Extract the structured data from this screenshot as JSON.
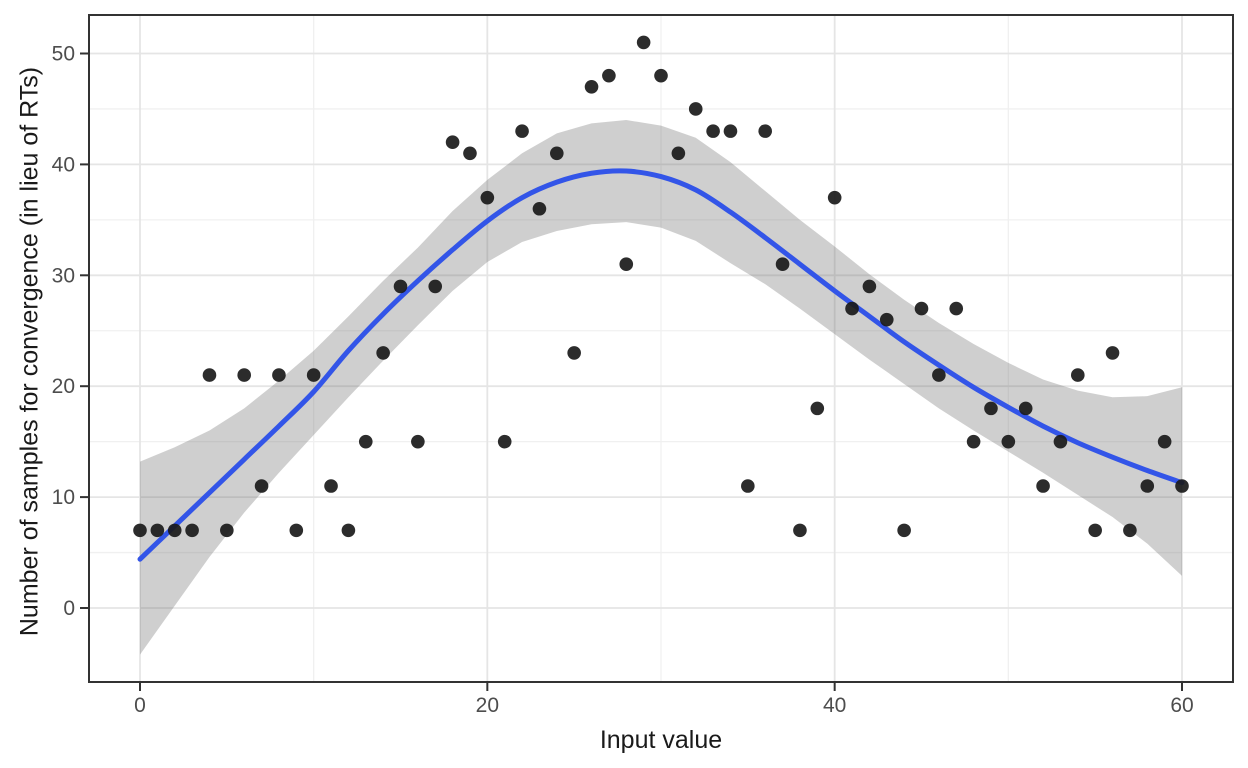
{
  "chart_data": {
    "type": "scatter",
    "title": "",
    "xlabel": "Input value",
    "ylabel": "Number of samples for convergence (in lieu of RTs)",
    "x_axis": {
      "min": -2.9,
      "max": 62.9,
      "major_ticks": [
        0,
        20,
        40,
        60
      ],
      "minor_gridlines": [
        10,
        30,
        50
      ],
      "tick_labels": [
        "0",
        "20",
        "40",
        "60"
      ]
    },
    "y_axis": {
      "min": -6.7,
      "max": 53.5,
      "major_ticks": [
        0,
        10,
        20,
        30,
        40,
        50
      ],
      "minor_gridlines": [
        5,
        15,
        25,
        35,
        45
      ],
      "tick_labels": [
        "0",
        "10",
        "20",
        "30",
        "40",
        "50"
      ]
    },
    "grid": "on",
    "legend": "none",
    "points": {
      "x": [
        0,
        1,
        2,
        3,
        4,
        5,
        6,
        7,
        8,
        9,
        10,
        11,
        12,
        13,
        14,
        15,
        16,
        17,
        18,
        19,
        20,
        21,
        22,
        23,
        24,
        25,
        26,
        27,
        28,
        29,
        30,
        31,
        32,
        33,
        34,
        35,
        36,
        37,
        38,
        39,
        40,
        41,
        42,
        43,
        44,
        45,
        46,
        47,
        48,
        49,
        50,
        51,
        52,
        53,
        54,
        55,
        56,
        57,
        58,
        59,
        60
      ],
      "y": [
        7,
        7,
        7,
        7,
        21,
        7,
        21,
        11,
        21,
        7,
        21,
        11,
        7,
        15,
        23,
        29,
        15,
        29,
        42,
        41,
        37,
        15,
        43,
        36,
        41,
        23,
        47,
        48,
        31,
        51,
        48,
        41,
        45,
        43,
        43,
        11,
        43,
        31,
        7,
        18,
        37,
        27,
        29,
        26,
        7,
        27,
        21,
        27,
        15,
        18,
        15,
        18,
        11,
        15,
        21,
        7,
        23,
        7,
        11,
        15,
        11
      ]
    },
    "smooth_line": {
      "x": [
        0,
        2,
        4,
        6,
        8,
        10,
        12,
        14,
        16,
        18,
        20,
        22,
        24,
        26,
        28,
        30,
        32,
        34,
        36,
        38,
        40,
        42,
        44,
        46,
        48,
        50,
        52,
        54,
        56,
        58,
        60
      ],
      "y": [
        4.4,
        7.4,
        10.4,
        13.4,
        16.4,
        19.5,
        23.2,
        26.5,
        29.5,
        32.3,
        34.9,
        37.0,
        38.4,
        39.2,
        39.4,
        38.9,
        37.7,
        35.7,
        33.4,
        31.0,
        28.6,
        26.3,
        24.0,
        21.9,
        19.9,
        18.1,
        16.4,
        14.9,
        13.6,
        12.4,
        11.3
      ]
    },
    "confidence_band": {
      "x": [
        0,
        2,
        4,
        6,
        8,
        10,
        12,
        14,
        16,
        18,
        20,
        22,
        24,
        26,
        28,
        30,
        32,
        34,
        36,
        38,
        40,
        42,
        44,
        46,
        48,
        50,
        52,
        54,
        56,
        58,
        60
      ],
      "upper": [
        13.2,
        14.5,
        16.0,
        18.0,
        20.5,
        23.2,
        26.3,
        29.5,
        32.5,
        35.8,
        38.6,
        41.0,
        42.8,
        43.7,
        44.0,
        43.5,
        42.4,
        40.2,
        37.6,
        35.0,
        32.6,
        30.1,
        27.8,
        25.7,
        23.8,
        22.1,
        20.6,
        19.6,
        19.0,
        19.1,
        19.9
      ],
      "lower": [
        -4.2,
        0.2,
        4.6,
        8.6,
        12.2,
        15.6,
        19.0,
        22.3,
        25.5,
        28.6,
        31.2,
        33.0,
        34.0,
        34.6,
        34.8,
        34.3,
        33.1,
        31.1,
        29.2,
        27.0,
        24.7,
        22.4,
        20.2,
        18.0,
        16.0,
        14.1,
        12.2,
        10.2,
        8.2,
        5.8,
        2.9
      ]
    },
    "colors": {
      "point": "#1a1a1a",
      "smooth_line": "#3355e8",
      "band_fill": "rgba(108,108,108,0.33)",
      "grid_major": "#e5e5e5",
      "grid_minor": "#f0f0f0",
      "panel_border": "#333333",
      "tick_mark": "#333333",
      "tick_label": "#4d4d4d",
      "axis_title": "#1a1a1a",
      "background": "#ffffff"
    }
  }
}
